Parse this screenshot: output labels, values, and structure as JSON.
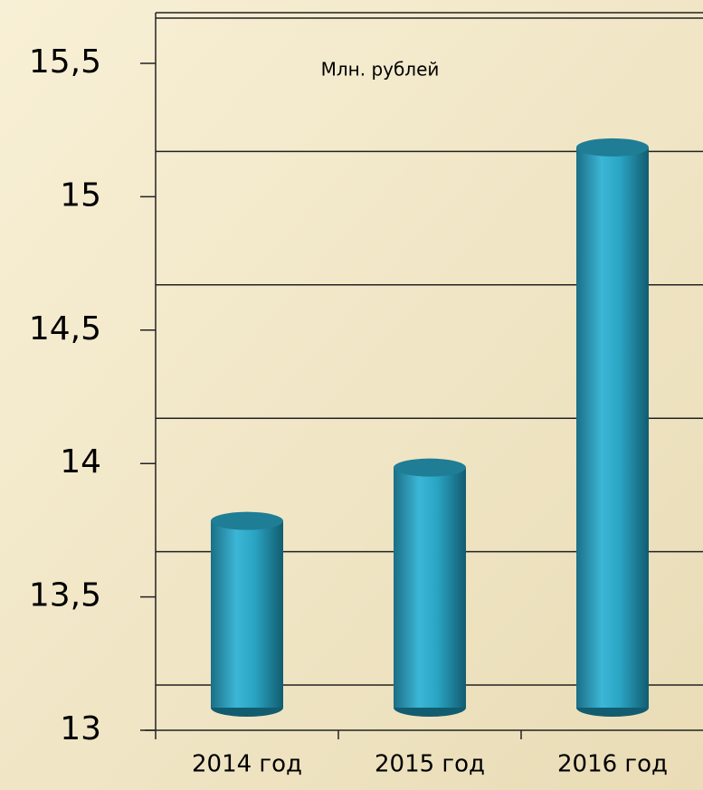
{
  "chart_data": {
    "type": "bar",
    "axis_label": "Млн. рублей",
    "categories": [
      "2014 год",
      "2015 год",
      "2016 год"
    ],
    "values": [
      13.7,
      13.9,
      15.1
    ],
    "color": "#2aa5c4",
    "ylim": [
      13,
      15.5
    ],
    "yticks": [
      13,
      {
        "value": 13.5,
        "label": "13,5"
      },
      14,
      {
        "value": 14.5,
        "label": "14,5"
      },
      15,
      {
        "value": 15.5,
        "label": "15,5"
      }
    ],
    "grid": true
  }
}
